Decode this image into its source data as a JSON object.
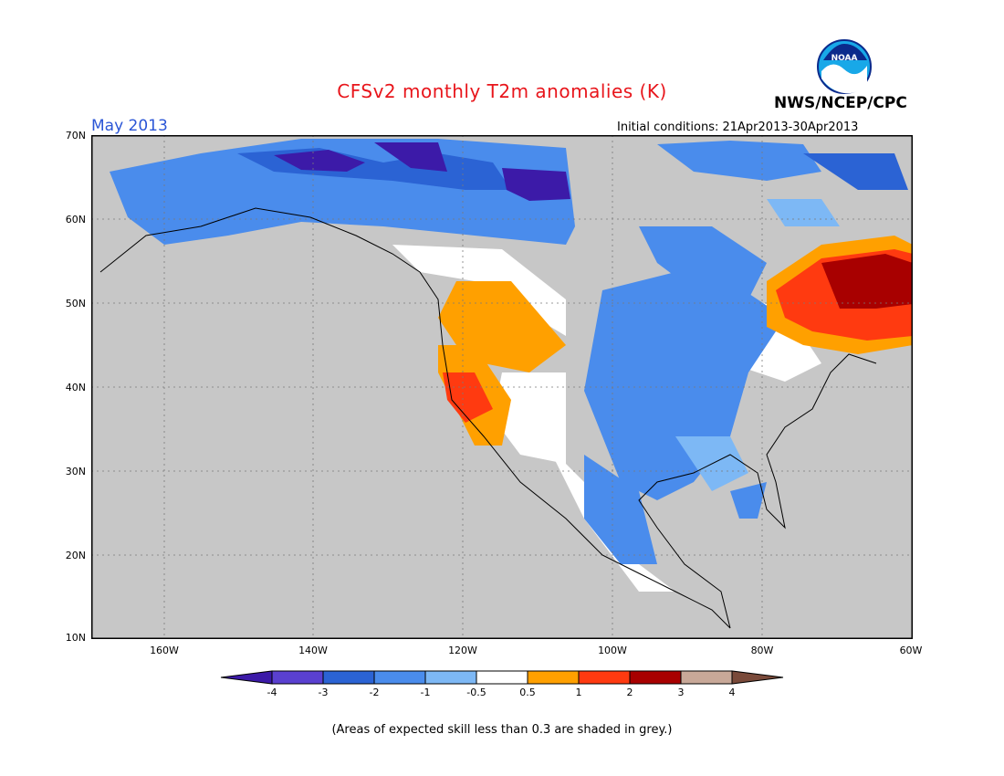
{
  "header": {
    "title": "CFSv2 monthly T2m anomalies (K)",
    "agency": "NWS/NCEP/CPC",
    "logo_text": "NOAA",
    "month": "May 2013",
    "initial_conditions": "Initial conditions: 21Apr2013-30Apr2013"
  },
  "axes": {
    "lat_labels": [
      "70N",
      "60N",
      "50N",
      "40N",
      "30N",
      "20N",
      "10N"
    ],
    "lon_labels": [
      "160W",
      "140W",
      "120W",
      "100W",
      "80W",
      "60W"
    ]
  },
  "colorbar": {
    "labels": [
      "-4",
      "-3",
      "-2",
      "-1",
      "-0.5",
      "0.5",
      "1",
      "2",
      "3",
      "4"
    ],
    "colors": [
      "#3c1aa8",
      "#5a40d0",
      "#2b63d4",
      "#4a8cec",
      "#7db8f5",
      "#ffffff",
      "#ffa000",
      "#ff3a10",
      "#a80000",
      "#c8a898",
      "#7a4a3a"
    ]
  },
  "footnote": "(Areas of expected skill less than 0.3 are shaded in grey.)",
  "colors": {
    "land_grey": "#c7c7c7",
    "title_red": "#e8151b",
    "month_blue": "#2a55d6"
  }
}
